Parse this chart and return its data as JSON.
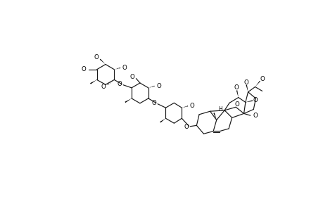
{
  "bg_color": "#ffffff",
  "line_color": "#181818",
  "bond_lw": 0.85,
  "label_fontsize": 6.2,
  "fig_width": 4.6,
  "fig_height": 3.0,
  "dpi": 100,
  "xlim": [
    0,
    10
  ],
  "ylim": [
    0,
    6
  ]
}
